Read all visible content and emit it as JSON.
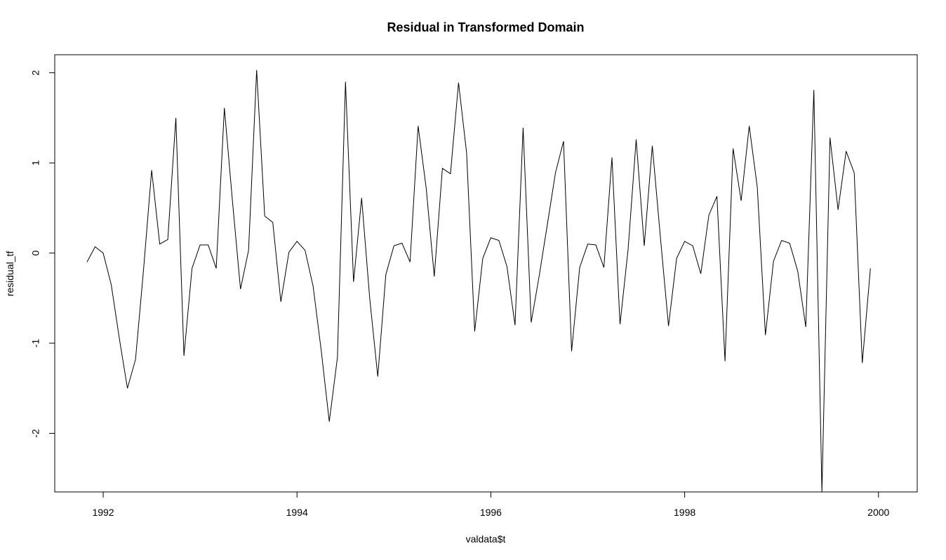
{
  "chart_data": {
    "type": "line",
    "title": "Residual in Transformed Domain",
    "xlabel": "valdata$t",
    "ylabel": "residual_tf",
    "xlim": [
      1991.5,
      2000.4
    ],
    "ylim": [
      -2.65,
      2.2
    ],
    "x_ticks": [
      1992,
      1994,
      1996,
      1998,
      2000
    ],
    "x_tick_labels": [
      "1992",
      "1994",
      "1996",
      "1998",
      "2000"
    ],
    "y_ticks": [
      -2,
      -1,
      0,
      1,
      2
    ],
    "y_tick_labels": [
      "-2",
      "-1",
      "0",
      "1",
      "2"
    ],
    "grid": false,
    "line_color": "#000000",
    "series": [
      {
        "x_start": 1991.8333,
        "x_step": 0.0833333,
        "values": [
          -0.1,
          0.07,
          0.0,
          -0.35,
          -0.95,
          -1.5,
          -1.18,
          -0.18,
          0.92,
          0.1,
          0.15,
          1.5,
          -1.14,
          -0.17,
          0.09,
          0.09,
          -0.17,
          1.61,
          0.58,
          -0.4,
          0.03,
          2.03,
          0.41,
          0.34,
          -0.54,
          0.01,
          0.13,
          0.03,
          -0.37,
          -1.08,
          -1.87,
          -1.16,
          1.9,
          -0.32,
          0.61,
          -0.5,
          -1.37,
          -0.24,
          0.08,
          0.11,
          -0.1,
          1.41,
          0.72,
          -0.26,
          0.94,
          0.88,
          1.89,
          1.11,
          -0.87,
          -0.06,
          0.17,
          0.14,
          -0.15,
          -0.8,
          1.39,
          -0.77,
          -0.25,
          0.32,
          0.89,
          1.24,
          -1.09,
          -0.16,
          0.1,
          0.09,
          -0.16,
          1.06,
          -0.79,
          0.04,
          1.26,
          0.08,
          1.19,
          0.17,
          -0.81,
          -0.06,
          0.13,
          0.08,
          -0.23,
          0.42,
          0.63,
          -1.2,
          1.16,
          0.58,
          1.41,
          0.73,
          -0.91,
          -0.09,
          0.14,
          0.11,
          -0.2,
          -0.82,
          1.81,
          -2.65,
          1.28,
          0.48,
          1.13,
          0.89,
          -1.22,
          -0.17
        ]
      }
    ]
  }
}
